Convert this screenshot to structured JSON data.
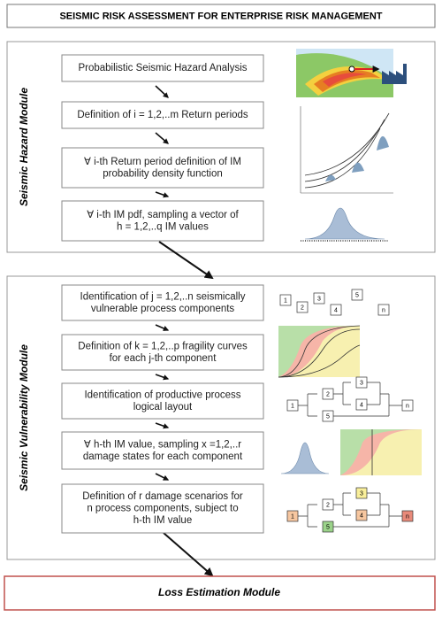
{
  "title": "SEISMIC RISK ASSESSMENT FOR ENTERPRISE RISK MANAGEMENT",
  "modules": [
    {
      "label": "Seismic Hazard Module",
      "steps": [
        {
          "lines": [
            "Probabilistic Seismic Hazard Analysis"
          ]
        },
        {
          "lines": [
            "Definition of i = 1,2,..m Return periods"
          ]
        },
        {
          "lines": [
            "∀ i-th Return period definition of IM",
            "probability density function"
          ]
        },
        {
          "lines": [
            "∀ i-th IM pdf, sampling a vector of",
            "h = 1,2,..q IM values"
          ]
        }
      ]
    },
    {
      "label": "Seismic Vulnerability Module",
      "steps": [
        {
          "lines": [
            "Identification of j = 1,2,..n seismically",
            "vulnerable process components"
          ]
        },
        {
          "lines": [
            "Definition of k = 1,2,..p fragility curves",
            "for each j-th component"
          ]
        },
        {
          "lines": [
            "Identification of productive process",
            "logical layout"
          ]
        },
        {
          "lines": [
            "∀ h-th IM value, sampling x =1,2,..r",
            "damage states for each component"
          ]
        },
        {
          "lines": [
            "Definition of r damage scenarios for",
            "n process components, subject to",
            "h-th IM value"
          ]
        }
      ]
    }
  ],
  "components": [
    "1",
    "2",
    "3",
    "4",
    "5",
    "n"
  ],
  "layout_nodes": [
    "1",
    "2",
    "3",
    "4",
    "5",
    "n"
  ],
  "scenario_nodes": [
    "1",
    "2",
    "3",
    "4",
    "5",
    "n"
  ],
  "final": "Loss Estimation Module"
}
